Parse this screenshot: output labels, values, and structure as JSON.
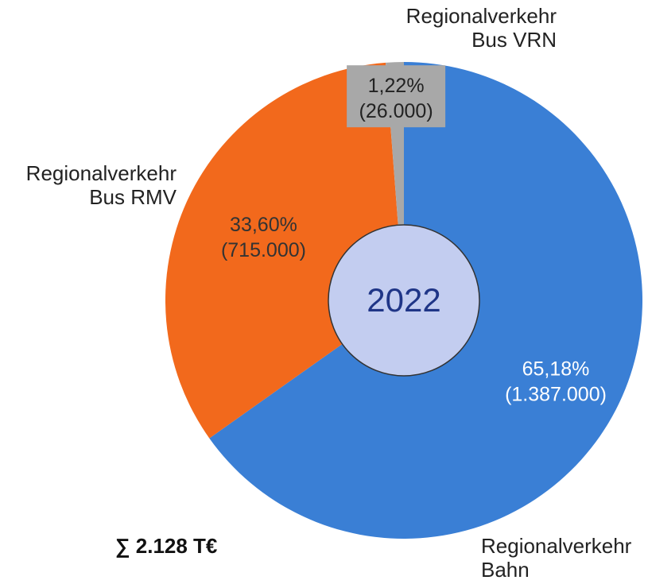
{
  "chart_data": {
    "type": "pie",
    "center_label": "2022",
    "total_label": "∑ 2.128 T€",
    "categories": [
      "Regionalverkehr Bahn",
      "Regionalverkehr Bus RMV",
      "Regionalverkehr Bus VRN"
    ],
    "values": [
      65.18,
      33.6,
      1.22
    ],
    "value_labels": [
      "65,18%",
      "33,60%",
      "1,22%"
    ],
    "amounts": [
      1387000,
      715000,
      26000
    ],
    "amount_labels": [
      "(1.387.000)",
      "(715.000)",
      "(26.000)"
    ],
    "colors": [
      "#3a7fd5",
      "#f2691c",
      "#a8a8a8"
    ],
    "center_color": "#c3cdf0"
  }
}
